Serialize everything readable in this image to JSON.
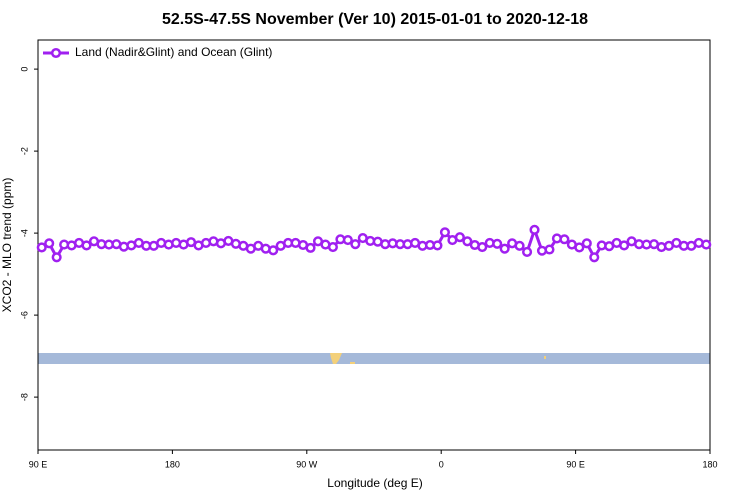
{
  "chart_data": {
    "type": "line",
    "title": "52.5S-47.5S November (Ver 10)   2015-01-01 to 2020-12-18",
    "x_label": "Longitude (deg E)",
    "y_label": "XCO2 - MLO trend (ppm)",
    "xlim": [
      90,
      540
    ],
    "ylim": [
      -9.29,
      0.71
    ],
    "xticks": [
      {
        "value": 90,
        "label": "90 E"
      },
      {
        "value": 180,
        "label": "180"
      },
      {
        "value": 270,
        "label": "90 W"
      },
      {
        "value": 360,
        "label": "0"
      },
      {
        "value": 450,
        "label": "90 E"
      },
      {
        "value": 540,
        "label": "180"
      }
    ],
    "yticks": [
      0,
      -2,
      -4,
      -6,
      -8
    ],
    "legend_position": "top-left",
    "x": [
      92.5,
      97.5,
      102.5,
      107.5,
      112.5,
      117.5,
      122.5,
      127.5,
      132.5,
      137.5,
      142.5,
      147.5,
      152.5,
      157.5,
      162.5,
      167.5,
      172.5,
      177.5,
      182.5,
      187.5,
      192.5,
      197.5,
      202.5,
      207.5,
      212.5,
      217.5,
      222.5,
      227.5,
      232.5,
      237.5,
      242.5,
      247.5,
      252.5,
      257.5,
      262.5,
      267.5,
      272.5,
      277.5,
      282.5,
      287.5,
      292.5,
      297.5,
      302.5,
      307.5,
      312.5,
      317.5,
      322.5,
      327.5,
      332.5,
      337.5,
      342.5,
      347.5,
      352.5,
      357.5,
      362.5,
      367.5,
      372.5,
      377.5,
      382.5,
      387.5,
      392.5,
      397.5,
      402.5,
      407.5,
      412.5,
      417.5,
      422.5,
      427.5,
      432.5,
      437.5,
      442.5,
      447.5,
      452.5,
      457.5,
      462.5,
      467.5,
      472.5,
      477.5,
      482.5,
      487.5,
      492.5,
      497.5,
      502.5,
      507.5,
      512.5,
      517.5,
      522.5,
      527.5,
      532.5,
      537.5
    ],
    "series": [
      {
        "name": "Land (Nadir&Glint) and Ocean (Glint)",
        "color": "#a020f0",
        "values": [
          -4.35,
          -4.25,
          -4.59,
          -4.28,
          -4.3,
          -4.24,
          -4.3,
          -4.2,
          -4.27,
          -4.28,
          -4.27,
          -4.33,
          -4.3,
          -4.24,
          -4.31,
          -4.31,
          -4.24,
          -4.28,
          -4.24,
          -4.28,
          -4.22,
          -4.3,
          -4.24,
          -4.2,
          -4.25,
          -4.19,
          -4.26,
          -4.31,
          -4.38,
          -4.31,
          -4.38,
          -4.42,
          -4.31,
          -4.24,
          -4.24,
          -4.29,
          -4.36,
          -4.2,
          -4.28,
          -4.34,
          -4.15,
          -4.17,
          -4.27,
          -4.12,
          -4.19,
          -4.21,
          -4.27,
          -4.25,
          -4.27,
          -4.27,
          -4.24,
          -4.31,
          -4.29,
          -4.3,
          -3.98,
          -4.17,
          -4.1,
          -4.2,
          -4.29,
          -4.34,
          -4.24,
          -4.26,
          -4.38,
          -4.25,
          -4.31,
          -4.46,
          -3.92,
          -4.43,
          -4.4,
          -4.13,
          -4.15,
          -4.28,
          -4.35,
          -4.25,
          -4.59,
          -4.3,
          -4.32,
          -4.24,
          -4.3,
          -4.2,
          -4.27,
          -4.28,
          -4.27,
          -4.34,
          -4.31,
          -4.24,
          -4.31,
          -4.31,
          -4.24,
          -4.28
        ]
      }
    ]
  }
}
